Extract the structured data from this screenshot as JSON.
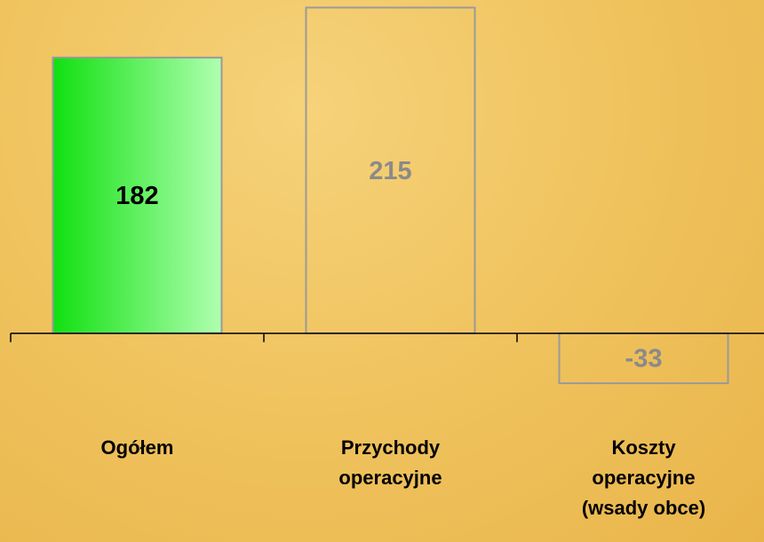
{
  "chart_data": {
    "type": "bar",
    "categories": [
      "Ogółem",
      "Przychody operacyjne",
      "Koszty operacyjne (wsady obce)"
    ],
    "values": [
      182,
      215,
      -33
    ],
    "colors": [
      "#22e022",
      "none",
      "none"
    ],
    "label_colors": [
      "#000000",
      "#8a8a8a",
      "#8a8a8a"
    ],
    "ylim": [
      -40,
      220
    ]
  }
}
